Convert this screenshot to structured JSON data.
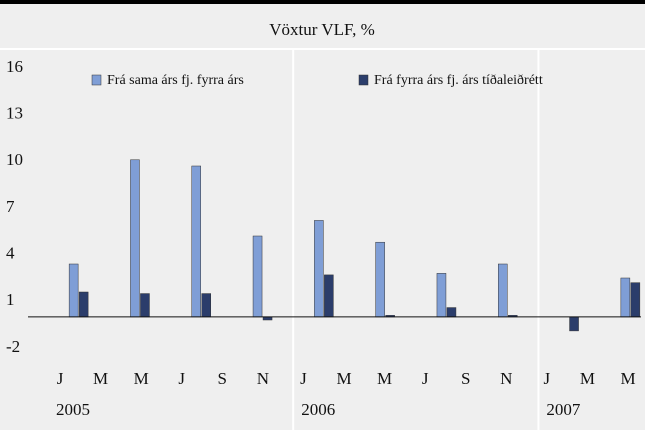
{
  "chart_data": {
    "type": "bar",
    "title": "Vöxtur VLF, %",
    "categories": [
      null,
      null,
      null,
      null,
      null,
      null,
      null,
      null,
      null,
      null
    ],
    "series": [
      {
        "name": "Frá sama árs fj. fyrra árs",
        "color": "#7f9ed6",
        "values": [
          3.4,
          10.1,
          9.7,
          5.2,
          6.2,
          4.8,
          2.8,
          3.4,
          0,
          2.5
        ]
      },
      {
        "name": "Frá fyrra árs fj. árs tíðaleiðrétt",
        "color": "#2b3d6b",
        "values": [
          1.6,
          1.5,
          1.5,
          -0.2,
          2.7,
          0.1,
          0.6,
          0.1,
          -0.9,
          2.2
        ]
      }
    ],
    "month_labels": [
      "J",
      "M",
      "M",
      "J",
      "S",
      "N",
      "J",
      "M",
      "M",
      "J",
      "S",
      "N",
      "J",
      "M",
      "M"
    ],
    "years": [
      "2005",
      "2006",
      "2007"
    ],
    "ylim": [
      -2,
      16
    ],
    "yticks": [
      -2,
      1,
      4,
      7,
      10,
      13,
      16
    ],
    "grid": false
  }
}
